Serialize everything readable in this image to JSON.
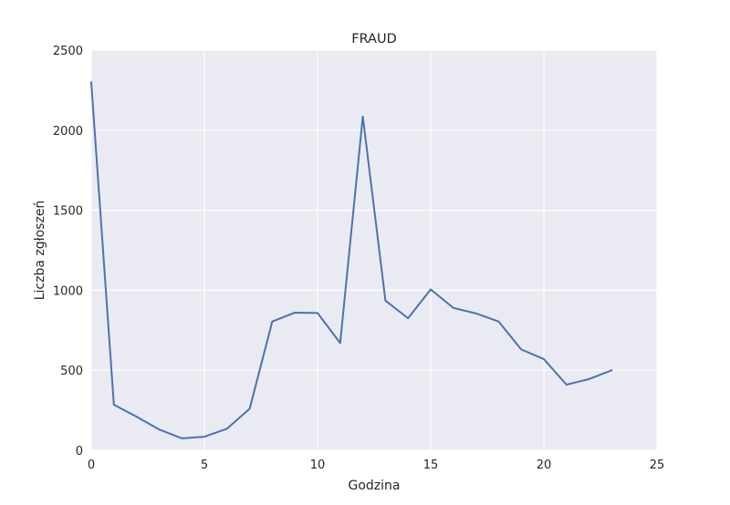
{
  "chart_data": {
    "type": "line",
    "title": "FRAUD",
    "xlabel": "Godzina",
    "ylabel": "Liczba zgłoszeń",
    "xlim": [
      0,
      25
    ],
    "ylim": [
      0,
      2500
    ],
    "xticks": [
      0,
      5,
      10,
      15,
      20,
      25
    ],
    "yticks": [
      0,
      500,
      1000,
      1500,
      2000,
      2500
    ],
    "grid": true,
    "legend": "none",
    "colors": {
      "background": "#EAEAF2",
      "grid": "#FFFFFF",
      "line": "#4C72B0"
    },
    "series": [
      {
        "x": [
          0,
          1,
          2,
          3,
          4,
          5,
          6,
          7,
          8,
          9,
          10,
          11,
          12,
          13,
          14,
          15,
          16,
          17,
          18,
          19,
          20,
          21,
          22,
          23
        ],
        "values": [
          2300,
          285,
          210,
          130,
          75,
          85,
          135,
          260,
          805,
          860,
          858,
          670,
          2085,
          935,
          825,
          1005,
          890,
          855,
          805,
          630,
          570,
          410,
          445,
          500
        ]
      }
    ]
  }
}
